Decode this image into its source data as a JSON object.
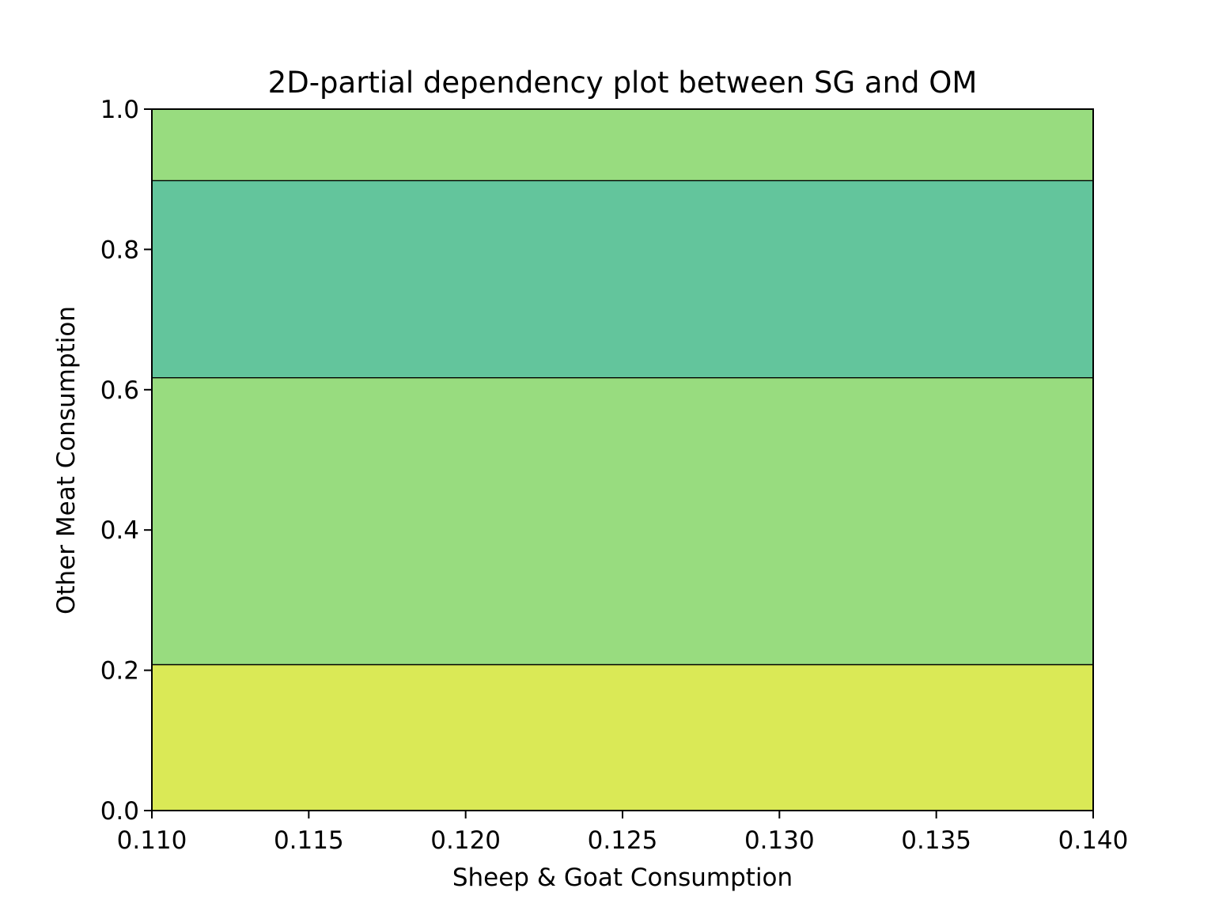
{
  "chart_data": {
    "type": "contour",
    "title": "2D-partial dependency plot between SG and OM",
    "xlabel": "Sheep & Goat Consumption",
    "ylabel": "Other Meat Consumption",
    "xlim": [
      0.11,
      0.14
    ],
    "ylim": [
      0.0,
      1.0
    ],
    "xticks": [
      "0.110",
      "0.115",
      "0.120",
      "0.125",
      "0.130",
      "0.135",
      "0.140"
    ],
    "yticks": [
      "0.0",
      "0.2",
      "0.4",
      "0.6",
      "0.8",
      "1.0"
    ],
    "grid": false,
    "bands": [
      {
        "y0": 0.0,
        "y1": 0.208,
        "color": "#dae956"
      },
      {
        "y0": 0.208,
        "y1": 0.617,
        "color": "#98dc7f"
      },
      {
        "y0": 0.617,
        "y1": 0.898,
        "color": "#63c59c"
      },
      {
        "y0": 0.898,
        "y1": 1.0,
        "color": "#98dc7f"
      }
    ]
  }
}
